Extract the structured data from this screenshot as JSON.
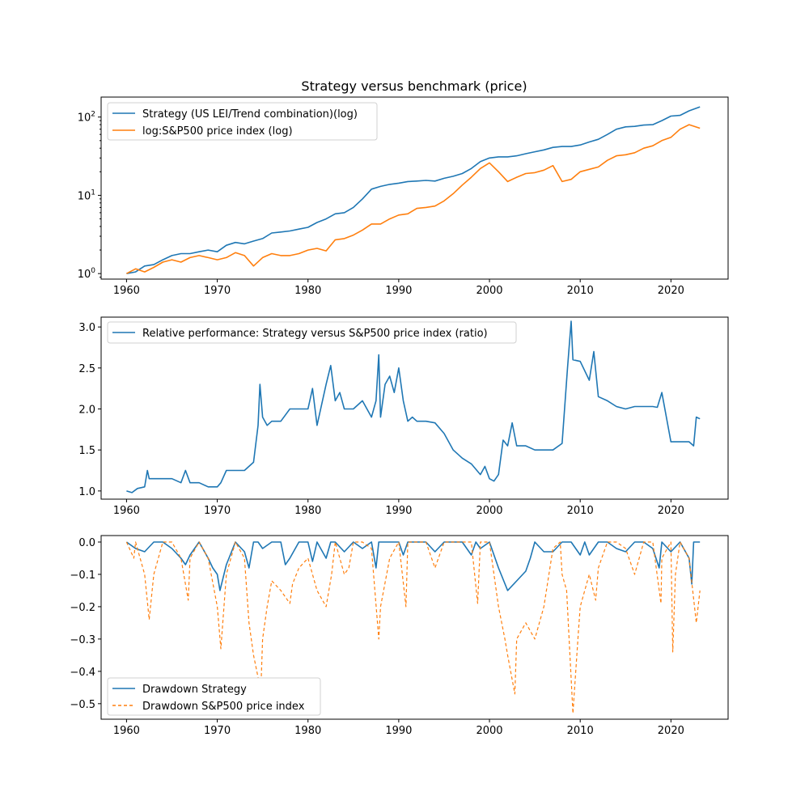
{
  "chart_data": [
    {
      "type": "line",
      "title": "Strategy versus benchmark (price)",
      "xlabel": "",
      "ylabel": "",
      "yscale": "log",
      "xlim": [
        1957.2,
        2026.3
      ],
      "ylim": [
        0.85,
        180
      ],
      "xticks": [
        1960,
        1970,
        1980,
        1990,
        2000,
        2010,
        2020
      ],
      "yticks": [
        {
          "value": 1,
          "label": "10",
          "exp": "0"
        },
        {
          "value": 10,
          "label": "10",
          "exp": "1"
        },
        {
          "value": 100,
          "label": "10",
          "exp": "2"
        }
      ],
      "legend": "top-left",
      "grid": false,
      "series": [
        {
          "name": "Strategy (US LEI/Trend combination)(log)",
          "color": "#1f77b4",
          "x": [
            1960,
            1961,
            1962,
            1963,
            1964,
            1965,
            1966,
            1967,
            1968,
            1969,
            1970,
            1971,
            1972,
            1973,
            1974,
            1975,
            1976,
            1977,
            1978,
            1979,
            1980,
            1981,
            1982,
            1983,
            1984,
            1985,
            1986,
            1987,
            1988,
            1989,
            1990,
            1991,
            1992,
            1993,
            1994,
            1995,
            1996,
            1997,
            1998,
            1999,
            2000,
            2001,
            2002,
            2003,
            2004,
            2005,
            2006,
            2007,
            2008,
            2009,
            2010,
            2011,
            2012,
            2013,
            2014,
            2015,
            2016,
            2017,
            2018,
            2019,
            2020,
            2021,
            2022,
            2023.2
          ],
          "values": [
            1.0,
            1.05,
            1.25,
            1.3,
            1.5,
            1.7,
            1.8,
            1.8,
            1.9,
            2.0,
            1.9,
            2.3,
            2.5,
            2.4,
            2.6,
            2.8,
            3.3,
            3.4,
            3.5,
            3.7,
            3.9,
            4.5,
            5.0,
            5.8,
            6.0,
            7.0,
            9.0,
            12.0,
            13.0,
            13.8,
            14.3,
            15.0,
            15.2,
            15.5,
            15.2,
            16.5,
            17.5,
            19.0,
            22.0,
            27.0,
            30.0,
            31.0,
            31.0,
            32.0,
            34.0,
            36.0,
            38.0,
            41.0,
            42.0,
            42.0,
            44.0,
            48.0,
            52.0,
            60.0,
            70.0,
            75.0,
            76.0,
            79.0,
            80.0,
            90.0,
            103.0,
            105.0,
            120.0,
            135.0
          ]
        },
        {
          "name": "log:S&P500 price index (log)",
          "color": "#ff7f0e",
          "x": [
            1960,
            1961,
            1962,
            1963,
            1964,
            1965,
            1966,
            1967,
            1968,
            1969,
            1970,
            1971,
            1972,
            1973,
            1974,
            1975,
            1976,
            1977,
            1978,
            1979,
            1980,
            1981,
            1982,
            1983,
            1984,
            1985,
            1986,
            1987,
            1988,
            1989,
            1990,
            1991,
            1992,
            1993,
            1994,
            1995,
            1996,
            1997,
            1998,
            1999,
            2000,
            2001,
            2002,
            2003,
            2004,
            2005,
            2006,
            2007,
            2008,
            2009,
            2010,
            2011,
            2012,
            2013,
            2014,
            2015,
            2016,
            2017,
            2018,
            2019,
            2020,
            2021,
            2022,
            2023.2
          ],
          "values": [
            1.0,
            1.15,
            1.05,
            1.2,
            1.4,
            1.5,
            1.4,
            1.6,
            1.7,
            1.6,
            1.5,
            1.6,
            1.85,
            1.7,
            1.25,
            1.6,
            1.8,
            1.7,
            1.7,
            1.8,
            2.0,
            2.1,
            1.95,
            2.7,
            2.8,
            3.1,
            3.6,
            4.3,
            4.3,
            5.0,
            5.6,
            5.8,
            6.8,
            7.0,
            7.3,
            8.5,
            10.5,
            13.5,
            17.0,
            22.0,
            26.0,
            20.0,
            15.0,
            17.0,
            19.0,
            19.5,
            21.0,
            24.0,
            15.0,
            16.0,
            20.0,
            21.5,
            23.0,
            28.0,
            32.0,
            33.0,
            35.0,
            40.0,
            43.0,
            50.0,
            55.0,
            70.0,
            80.0,
            72.0
          ]
        }
      ]
    },
    {
      "type": "line",
      "title": "",
      "xlabel": "",
      "ylabel": "",
      "xlim": [
        1957.2,
        2026.3
      ],
      "ylim": [
        0.9,
        3.12
      ],
      "xticks": [
        1960,
        1970,
        1980,
        1990,
        2000,
        2010,
        2020
      ],
      "yticks": [
        1.0,
        1.5,
        2.0,
        2.5,
        3.0
      ],
      "ytick_labels": [
        "1.0",
        "1.5",
        "2.0",
        "2.5",
        "3.0"
      ],
      "legend": "top-left",
      "grid": false,
      "series": [
        {
          "name": "Relative performance: Strategy versus S&P500 price index (ratio)",
          "color": "#1f77b4",
          "x": [
            1960,
            1960.6,
            1961.2,
            1962.0,
            1962.3,
            1962.5,
            1963.0,
            1964.0,
            1965.0,
            1966.0,
            1966.5,
            1967.0,
            1968.0,
            1969.0,
            1970.0,
            1970.4,
            1971.0,
            1972.0,
            1973.0,
            1974.0,
            1974.5,
            1974.7,
            1975.0,
            1975.5,
            1976.0,
            1977.0,
            1978.0,
            1979.0,
            1980.0,
            1980.5,
            1981.0,
            1981.5,
            1982.0,
            1982.5,
            1983.0,
            1983.5,
            1984.0,
            1985.0,
            1986.0,
            1987.0,
            1987.5,
            1987.8,
            1988.0,
            1988.5,
            1989.0,
            1989.5,
            1990.0,
            1990.5,
            1991.0,
            1991.5,
            1992.0,
            1993.0,
            1994.0,
            1995.0,
            1996.0,
            1997.0,
            1998.0,
            1999.0,
            1999.5,
            2000.0,
            2000.5,
            2001.0,
            2001.5,
            2002.0,
            2002.5,
            2003.0,
            2004.0,
            2005.0,
            2006.0,
            2007.0,
            2008.0,
            2008.6,
            2009.0,
            2009.2,
            2010.0,
            2011.0,
            2011.5,
            2012.0,
            2013.0,
            2014.0,
            2015.0,
            2016.0,
            2017.0,
            2018.0,
            2018.5,
            2019.0,
            2020.0,
            2021.0,
            2022.0,
            2022.5,
            2022.8,
            2023.2
          ],
          "values": [
            1.0,
            0.98,
            1.03,
            1.05,
            1.25,
            1.15,
            1.15,
            1.15,
            1.15,
            1.1,
            1.25,
            1.1,
            1.1,
            1.05,
            1.05,
            1.1,
            1.25,
            1.25,
            1.25,
            1.35,
            1.8,
            2.3,
            1.9,
            1.8,
            1.85,
            1.85,
            2.0,
            2.0,
            2.0,
            2.25,
            1.8,
            2.05,
            2.3,
            2.53,
            2.1,
            2.2,
            2.0,
            2.0,
            2.1,
            1.9,
            2.1,
            2.66,
            1.9,
            2.3,
            2.4,
            2.2,
            2.5,
            2.1,
            1.85,
            1.9,
            1.85,
            1.85,
            1.83,
            1.7,
            1.5,
            1.4,
            1.33,
            1.2,
            1.3,
            1.15,
            1.12,
            1.2,
            1.62,
            1.55,
            1.83,
            1.55,
            1.55,
            1.5,
            1.5,
            1.5,
            1.58,
            2.5,
            3.07,
            2.6,
            2.58,
            2.35,
            2.7,
            2.15,
            2.1,
            2.03,
            2.0,
            2.03,
            2.03,
            2.03,
            2.02,
            2.2,
            1.6,
            1.6,
            1.6,
            1.55,
            1.9,
            1.88
          ]
        }
      ]
    },
    {
      "type": "line",
      "title": "",
      "xlabel": "",
      "ylabel": "",
      "xlim": [
        1957.2,
        2026.3
      ],
      "ylim": [
        -0.548,
        0.02
      ],
      "xticks": [
        1960,
        1970,
        1980,
        1990,
        2000,
        2010,
        2020
      ],
      "yticks": [
        0.0,
        -0.1,
        -0.2,
        -0.3,
        -0.4,
        -0.5
      ],
      "ytick_labels": [
        "0.0",
        "−0.1",
        "−0.2",
        "−0.3",
        "−0.4",
        "−0.5"
      ],
      "legend": "bottom-left",
      "grid": false,
      "series": [
        {
          "name": "Drawdown Strategy",
          "color": "#1f77b4",
          "dash": "solid",
          "x": [
            1960,
            1961,
            1962,
            1963,
            1964,
            1965,
            1966,
            1966.5,
            1967,
            1968,
            1969,
            1969.5,
            1970,
            1970.3,
            1971,
            1972,
            1973,
            1973.5,
            1974,
            1974.5,
            1975,
            1976,
            1977,
            1977.5,
            1978,
            1979,
            1980,
            1980.5,
            1981,
            1982,
            1982.5,
            1983,
            1984,
            1985,
            1986,
            1987,
            1987.5,
            1987.8,
            1988,
            1989,
            1990,
            1990.5,
            1991,
            1992,
            1993,
            1994,
            1995,
            1996,
            1997,
            1998,
            1998.5,
            1999,
            2000,
            2001,
            2002,
            2003,
            2004,
            2004.5,
            2005,
            2006,
            2007,
            2008,
            2009,
            2010,
            2010.5,
            2011,
            2012,
            2013,
            2014,
            2015,
            2016,
            2017,
            2018,
            2018.7,
            2019,
            2020,
            2021,
            2022,
            2022.3,
            2022.5,
            2023.2
          ],
          "values": [
            0.0,
            -0.02,
            -0.03,
            0.0,
            0.0,
            -0.02,
            -0.05,
            -0.07,
            -0.04,
            0.0,
            -0.05,
            -0.08,
            -0.1,
            -0.15,
            -0.07,
            0.0,
            -0.03,
            -0.08,
            0.0,
            0.0,
            -0.02,
            0.0,
            0.0,
            -0.07,
            -0.05,
            0.0,
            0.0,
            -0.06,
            0.0,
            -0.05,
            0.0,
            0.0,
            -0.03,
            0.0,
            -0.02,
            0.0,
            -0.08,
            0.0,
            0.0,
            0.0,
            0.0,
            -0.04,
            0.0,
            0.0,
            0.0,
            -0.03,
            0.0,
            0.0,
            0.0,
            -0.04,
            0.0,
            -0.02,
            0.0,
            -0.08,
            -0.15,
            -0.12,
            -0.09,
            -0.05,
            0.0,
            -0.03,
            -0.03,
            0.0,
            0.0,
            -0.04,
            0.0,
            -0.04,
            0.0,
            0.0,
            -0.02,
            -0.03,
            0.0,
            0.0,
            -0.02,
            -0.08,
            0.0,
            -0.03,
            0.0,
            -0.05,
            -0.13,
            0.0,
            0.0
          ]
        },
        {
          "name": "Drawdown S&P500 price index",
          "color": "#ff7f0e",
          "dash": "4,3",
          "x": [
            1960,
            1960.8,
            1961,
            1962,
            1962.5,
            1963,
            1964,
            1965,
            1966,
            1966.8,
            1967,
            1968,
            1969,
            1970,
            1970.4,
            1971,
            1972,
            1973,
            1973.5,
            1974,
            1974.8,
            1975,
            1975.5,
            1976,
            1977,
            1978,
            1978.3,
            1979,
            1980,
            1981,
            1982,
            1982.6,
            1983,
            1984,
            1984.5,
            1985,
            1986,
            1987,
            1987.8,
            1988,
            1989,
            1990,
            1990.8,
            1991,
            1992,
            1993,
            1994,
            1995,
            1996,
            1997,
            1998,
            1998.7,
            1999,
            2000,
            2001,
            2001.7,
            2002,
            2002.8,
            2003,
            2004,
            2005,
            2006,
            2007,
            2007.8,
            2008,
            2008.5,
            2009.2,
            2009.8,
            2010,
            2010.5,
            2011,
            2011.7,
            2012,
            2013,
            2014,
            2015,
            2016,
            2017,
            2018,
            2018.9,
            2019,
            2020,
            2020.2,
            2020.5,
            2021,
            2022,
            2022.8,
            2023.2
          ],
          "values": [
            0.0,
            -0.05,
            0.0,
            -0.1,
            -0.24,
            -0.1,
            0.0,
            0.0,
            -0.05,
            -0.18,
            -0.05,
            0.0,
            -0.05,
            -0.2,
            -0.33,
            -0.1,
            0.0,
            -0.05,
            -0.25,
            -0.35,
            -0.46,
            -0.3,
            -0.2,
            -0.12,
            -0.15,
            -0.19,
            -0.13,
            -0.08,
            -0.05,
            -0.15,
            -0.2,
            -0.1,
            0.0,
            -0.1,
            -0.08,
            0.0,
            0.0,
            -0.02,
            -0.3,
            -0.2,
            -0.05,
            0.0,
            -0.2,
            0.0,
            0.0,
            0.0,
            -0.08,
            0.0,
            0.0,
            0.0,
            0.0,
            -0.19,
            0.0,
            0.0,
            -0.2,
            -0.3,
            -0.35,
            -0.47,
            -0.3,
            -0.25,
            -0.3,
            -0.2,
            -0.02,
            0.0,
            -0.1,
            -0.15,
            -0.53,
            -0.28,
            -0.2,
            -0.15,
            -0.1,
            -0.18,
            -0.08,
            0.0,
            0.0,
            -0.02,
            -0.1,
            0.0,
            0.0,
            -0.19,
            -0.05,
            0.0,
            -0.34,
            -0.1,
            0.0,
            -0.05,
            -0.25,
            -0.15
          ]
        }
      ]
    }
  ]
}
